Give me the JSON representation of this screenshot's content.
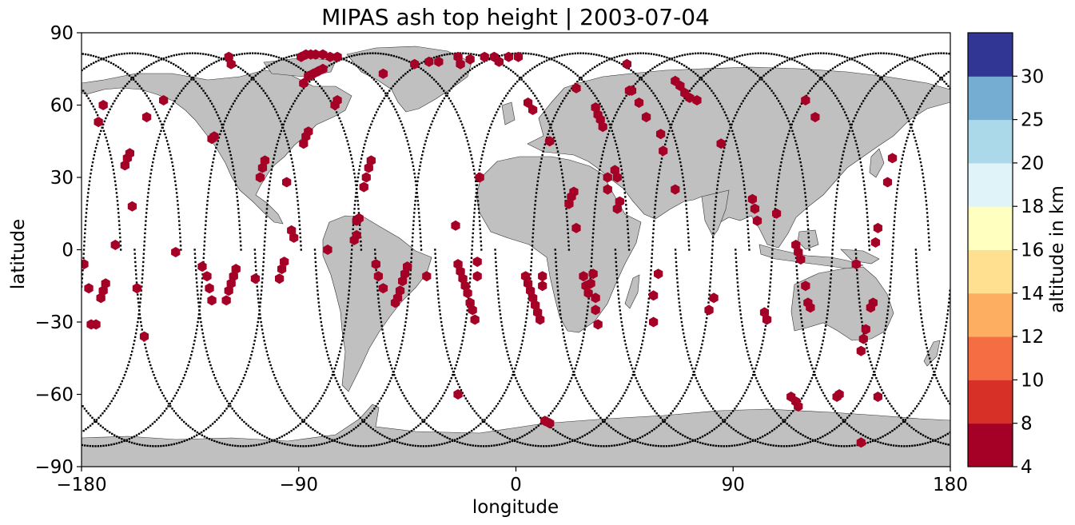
{
  "chart_data": {
    "type": "scatter",
    "title": "MIPAS ash top height | 2003-07-04",
    "xlabel": "longitude",
    "ylabel": "latitude",
    "xlim": [
      -180,
      180
    ],
    "ylim": [
      -90,
      90
    ],
    "xticks": [
      -180,
      -90,
      0,
      90,
      180
    ],
    "xtick_labels": [
      "−180",
      "−90",
      "0",
      "90",
      "180"
    ],
    "yticks": [
      -90,
      -60,
      -30,
      0,
      30,
      60,
      90
    ],
    "ytick_labels": [
      "−90",
      "−60",
      "−30",
      "0",
      "30",
      "60",
      "90"
    ],
    "grid": false,
    "map": {
      "projection": "PlateCarree",
      "land_color": "#c0c0c0",
      "ocean_color": "#ffffff"
    },
    "colorbar": {
      "label": "altitude in km",
      "bounds": [
        4,
        8,
        10,
        12,
        14,
        16,
        18,
        20,
        25,
        30
      ],
      "tick_labels": [
        "4",
        "8",
        "10",
        "12",
        "14",
        "16",
        "18",
        "20",
        "25",
        "30"
      ],
      "colors": [
        "#a50026",
        "#d73027",
        "#f46d43",
        "#fdae61",
        "#fee090",
        "#ffffbf",
        "#e0f3f8",
        "#abd9e9",
        "#74add1",
        "#313695"
      ]
    },
    "orbit_tracks": [
      {
        "lon0": -68.0,
        "dir": 1
      },
      {
        "lon0": -43.1,
        "dir": 1
      },
      {
        "lon0": -18.2,
        "dir": 1
      },
      {
        "lon0": 6.7,
        "dir": 1
      },
      {
        "lon0": 31.6,
        "dir": 1
      },
      {
        "lon0": 56.5,
        "dir": 1
      },
      {
        "lon0": 81.4,
        "dir": 1
      },
      {
        "lon0": 106.3,
        "dir": 1
      },
      {
        "lon0": 131.2,
        "dir": 1
      },
      {
        "lon0": 156.1,
        "dir": 1
      },
      {
        "lon0": -179.0,
        "dir": 1
      },
      {
        "lon0": -154.1,
        "dir": 1
      },
      {
        "lon0": -129.2,
        "dir": 1
      },
      {
        "lon0": -104.3,
        "dir": 1
      }
    ],
    "ash_detections": {
      "altitude_class": "4–8 km",
      "color": "#a50026",
      "points": [
        [
          -179,
          -6
        ],
        [
          -177,
          -16
        ],
        [
          -176,
          -31
        ],
        [
          -174,
          -31
        ],
        [
          -172,
          -20
        ],
        [
          -171,
          -17
        ],
        [
          -170,
          -14
        ],
        [
          -173,
          53
        ],
        [
          -171,
          60
        ],
        [
          -166,
          2
        ],
        [
          -162,
          35
        ],
        [
          -161,
          38
        ],
        [
          -160,
          40
        ],
        [
          -159,
          18
        ],
        [
          -157,
          -16
        ],
        [
          -154,
          -36
        ],
        [
          -153,
          55
        ],
        [
          -146,
          62
        ],
        [
          -141,
          -1
        ],
        [
          -130,
          -7
        ],
        [
          -128,
          -11
        ],
        [
          -127,
          -16
        ],
        [
          -126,
          -21
        ],
        [
          -126,
          46
        ],
        [
          -125,
          47
        ],
        [
          -120,
          -21
        ],
        [
          -119,
          -17
        ],
        [
          -118,
          -14
        ],
        [
          -117,
          -11
        ],
        [
          -116,
          -8
        ],
        [
          -119,
          80
        ],
        [
          -118,
          77
        ],
        [
          -108,
          -12
        ],
        [
          -106,
          30
        ],
        [
          -105,
          34
        ],
        [
          -104,
          37
        ],
        [
          -98,
          -12
        ],
        [
          -97,
          -8
        ],
        [
          -96,
          -5
        ],
        [
          -95,
          28
        ],
        [
          -93,
          8
        ],
        [
          -92,
          5
        ],
        [
          -89,
          80
        ],
        [
          -87,
          81
        ],
        [
          -88,
          69
        ],
        [
          -86,
          72
        ],
        [
          -84,
          73
        ],
        [
          -82,
          74
        ],
        [
          -80,
          75
        ],
        [
          -85,
          81
        ],
        [
          -83,
          81
        ],
        [
          -80,
          81
        ],
        [
          -88,
          44
        ],
        [
          -87,
          47
        ],
        [
          -86,
          49
        ],
        [
          -77,
          80
        ],
        [
          -74,
          80
        ],
        [
          -78,
          0
        ],
        [
          -75,
          60
        ],
        [
          -74,
          62
        ],
        [
          -67,
          4
        ],
        [
          -66,
          6
        ],
        [
          -66,
          12
        ],
        [
          -65,
          13
        ],
        [
          -63,
          26
        ],
        [
          -62,
          30
        ],
        [
          -61,
          34
        ],
        [
          -60,
          37
        ],
        [
          -58,
          -6
        ],
        [
          -57,
          -11
        ],
        [
          -55,
          -16
        ],
        [
          -55,
          73
        ],
        [
          -50,
          -22
        ],
        [
          -49,
          -20
        ],
        [
          -48,
          -17
        ],
        [
          -47,
          -13
        ],
        [
          -46,
          -10
        ],
        [
          -45,
          -7
        ],
        [
          -42,
          77
        ],
        [
          -37,
          -11
        ],
        [
          -36,
          78
        ],
        [
          -32,
          78
        ],
        [
          -25,
          10
        ],
        [
          -24,
          -6
        ],
        [
          -23,
          -9
        ],
        [
          -22,
          -12
        ],
        [
          -21,
          -15
        ],
        [
          -20,
          -18
        ],
        [
          -19,
          -22
        ],
        [
          -18,
          -25
        ],
        [
          -17,
          -29
        ],
        [
          -16,
          -11
        ],
        [
          -16,
          -5
        ],
        [
          -24,
          -60
        ],
        [
          -24,
          80
        ],
        [
          -23,
          77
        ],
        [
          -19,
          79
        ],
        [
          -15,
          30
        ],
        [
          -13,
          80
        ],
        [
          -9,
          80
        ],
        [
          -7,
          78
        ],
        [
          -3,
          80
        ],
        [
          1,
          80
        ],
        [
          4,
          -11
        ],
        [
          5,
          -14
        ],
        [
          6,
          -17
        ],
        [
          7,
          -20
        ],
        [
          8,
          -23
        ],
        [
          9,
          -26
        ],
        [
          10,
          -29
        ],
        [
          11,
          -11
        ],
        [
          11,
          -15
        ],
        [
          5,
          61
        ],
        [
          7,
          58
        ],
        [
          14,
          45
        ],
        [
          12,
          -71
        ],
        [
          14,
          -72
        ],
        [
          22,
          19
        ],
        [
          23,
          22
        ],
        [
          24,
          24
        ],
        [
          25,
          9
        ],
        [
          25,
          67
        ],
        [
          28,
          -11
        ],
        [
          29,
          -15
        ],
        [
          30,
          -18
        ],
        [
          31,
          -14
        ],
        [
          33,
          -20
        ],
        [
          32,
          -10
        ],
        [
          33,
          -25
        ],
        [
          34,
          -31
        ],
        [
          33,
          59
        ],
        [
          34,
          56
        ],
        [
          35,
          54
        ],
        [
          36,
          51
        ],
        [
          38,
          30
        ],
        [
          38,
          25
        ],
        [
          41,
          33
        ],
        [
          42,
          30
        ],
        [
          43,
          20
        ],
        [
          42,
          17
        ],
        [
          46,
          77
        ],
        [
          47,
          66
        ],
        [
          48,
          66
        ],
        [
          51,
          61
        ],
        [
          54,
          55
        ],
        [
          57,
          -19
        ],
        [
          57,
          -30
        ],
        [
          59,
          -10
        ],
        [
          60,
          48
        ],
        [
          61,
          41
        ],
        [
          66,
          25
        ],
        [
          66,
          70
        ],
        [
          68,
          68
        ],
        [
          70,
          65
        ],
        [
          72,
          63
        ],
        [
          75,
          62
        ],
        [
          80,
          -25
        ],
        [
          82,
          -20
        ],
        [
          85,
          44
        ],
        [
          98,
          21
        ],
        [
          99,
          17
        ],
        [
          100,
          12
        ],
        [
          103,
          -26
        ],
        [
          104,
          -29
        ],
        [
          108,
          15
        ],
        [
          114,
          -61
        ],
        [
          116,
          -63
        ],
        [
          117,
          -65
        ],
        [
          116,
          2
        ],
        [
          117,
          -1
        ],
        [
          118,
          -4
        ],
        [
          120,
          -15
        ],
        [
          121,
          -22
        ],
        [
          122,
          -24
        ],
        [
          120,
          62
        ],
        [
          124,
          55
        ],
        [
          133,
          -61
        ],
        [
          134,
          -60
        ],
        [
          141,
          -6
        ],
        [
          143,
          -42
        ],
        [
          144,
          -37
        ],
        [
          145,
          -33
        ],
        [
          147,
          -24
        ],
        [
          148,
          -22
        ],
        [
          143,
          -80
        ],
        [
          149,
          3
        ],
        [
          150,
          9
        ],
        [
          150,
          -61
        ],
        [
          154,
          28
        ],
        [
          156,
          38
        ]
      ]
    }
  }
}
